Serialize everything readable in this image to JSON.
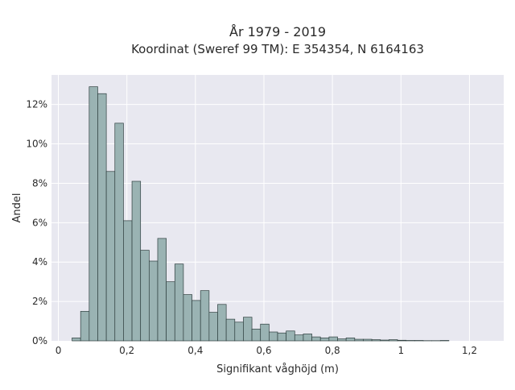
{
  "chart_data": {
    "type": "bar",
    "title": "År 1979 - 2019",
    "subtitle": "Koordinat (Sweref 99 TM): E 354354, N 6164163",
    "xlabel": "Signifikant våghöjd (m)",
    "ylabel": "Andel",
    "xlim": [
      -0.02,
      1.3
    ],
    "ylim": [
      0,
      13.5
    ],
    "x_ticks": [
      {
        "value": 0,
        "label": "0"
      },
      {
        "value": 0.2,
        "label": "0,2"
      },
      {
        "value": 0.4,
        "label": "0,4"
      },
      {
        "value": 0.6,
        "label": "0,6"
      },
      {
        "value": 0.8,
        "label": "0,8"
      },
      {
        "value": 1.0,
        "label": "1"
      },
      {
        "value": 1.2,
        "label": "1,2"
      }
    ],
    "y_ticks": [
      {
        "value": 0,
        "label": "0%"
      },
      {
        "value": 2,
        "label": "2%"
      },
      {
        "value": 4,
        "label": "4%"
      },
      {
        "value": 6,
        "label": "6%"
      },
      {
        "value": 8,
        "label": "8%"
      },
      {
        "value": 10,
        "label": "10%"
      },
      {
        "value": 12,
        "label": "12%"
      }
    ],
    "bin_width": 0.025,
    "bins_start": [
      0.04,
      0.065,
      0.09,
      0.115,
      0.14,
      0.165,
      0.19,
      0.215,
      0.24,
      0.265,
      0.29,
      0.315,
      0.34,
      0.365,
      0.39,
      0.415,
      0.44,
      0.465,
      0.49,
      0.515,
      0.54,
      0.565,
      0.59,
      0.615,
      0.64,
      0.665,
      0.69,
      0.715,
      0.74,
      0.765,
      0.79,
      0.815,
      0.84,
      0.865,
      0.89,
      0.915,
      0.94,
      0.965,
      0.99,
      1.015,
      1.04,
      1.065,
      1.09,
      1.115
    ],
    "values": [
      0.15,
      1.5,
      12.9,
      12.55,
      8.6,
      11.05,
      6.1,
      8.1,
      4.6,
      4.05,
      5.2,
      3.0,
      3.9,
      2.35,
      2.05,
      2.55,
      1.45,
      1.85,
      1.1,
      0.95,
      1.2,
      0.6,
      0.85,
      0.45,
      0.4,
      0.5,
      0.3,
      0.35,
      0.2,
      0.15,
      0.2,
      0.1,
      0.15,
      0.08,
      0.08,
      0.06,
      0.04,
      0.06,
      0.03,
      0.02,
      0.02,
      0.01,
      0.01,
      0.02
    ],
    "grid": true,
    "colors": {
      "background": "#e8e8f0",
      "grid": "#ffffff",
      "bar_fill": "#9ab3b3",
      "bar_stroke": "#2f3f3f"
    }
  }
}
